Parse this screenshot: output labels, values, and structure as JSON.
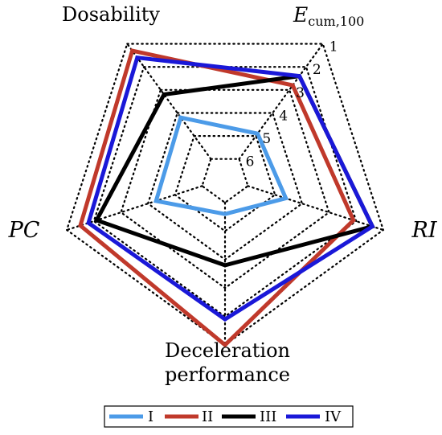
{
  "chart_data": {
    "type": "radar",
    "axes": [
      {
        "name": "Dosability"
      },
      {
        "name": "E_cum,100",
        "name_main": "E",
        "name_sub": "cum,100"
      },
      {
        "name": "RI"
      },
      {
        "name": "Deceleration performance",
        "name_lines": [
          "Deceleration",
          "performance"
        ]
      },
      {
        "name": "PC"
      }
    ],
    "ring_labels": [
      "1",
      "2",
      "3",
      "4",
      "5",
      "6"
    ],
    "rlim": [
      1,
      6
    ],
    "direction": "outer = 1, inner = 6",
    "grid": true,
    "legend_position": "bottom",
    "series": [
      {
        "name": "I",
        "color": "#4c9be8",
        "values": [
          4.2,
          4.9,
          4.6,
          5.6,
          4.3
        ]
      },
      {
        "name": "II",
        "color": "#c0392b",
        "values": [
          1.3,
          2.8,
          2.1,
          1.0,
          1.5
        ]
      },
      {
        "name": "III",
        "color": "#000000",
        "values": [
          3.2,
          2.4,
          1.4,
          3.8,
          2.1
        ]
      },
      {
        "name": "IV",
        "color": "#1a18d8",
        "values": [
          1.6,
          2.4,
          1.4,
          1.9,
          1.8
        ]
      }
    ]
  }
}
